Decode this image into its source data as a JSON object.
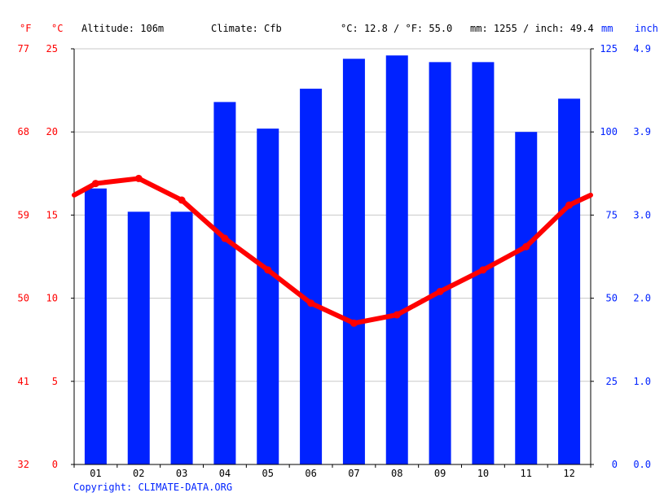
{
  "header": {
    "altitude": "Altitude: 106m",
    "climate": "Climate: Cfb",
    "avg_temp": "°C: 12.8 / °F: 55.0",
    "precip_total": "mm: 1255 / inch: 49.4"
  },
  "units": {
    "fahrenheit": "°F",
    "celsius": "°C",
    "mm": "mm",
    "inch": "inch"
  },
  "footer": {
    "copyright": "Copyright: CLIMATE-DATA.ORG"
  },
  "colors": {
    "temperature": "#ff0000",
    "precipitation": "#0022ff",
    "grid": "#c8c8c8"
  },
  "chart_data": {
    "type": "bar+line",
    "categories": [
      "01",
      "02",
      "03",
      "04",
      "05",
      "06",
      "07",
      "08",
      "09",
      "10",
      "11",
      "12"
    ],
    "precipitation_mm": [
      83,
      76,
      76,
      109,
      101,
      113,
      122,
      123,
      121,
      121,
      100,
      110
    ],
    "temperature_c": [
      16.9,
      17.2,
      15.9,
      13.6,
      11.7,
      9.7,
      8.5,
      9.0,
      10.4,
      11.7,
      13.1,
      15.6
    ],
    "temperature_edge_c": [
      16.2,
      16.2
    ],
    "left_axis_c": {
      "range": [
        0,
        25
      ],
      "ticks": [
        "0",
        "5",
        "10",
        "15",
        "20",
        "25"
      ]
    },
    "left_axis_f": {
      "ticks": [
        "32",
        "41",
        "50",
        "59",
        "68",
        "77"
      ]
    },
    "right_axis_mm": {
      "range": [
        0,
        125
      ],
      "ticks": [
        "0",
        "25",
        "50",
        "75",
        "100",
        "125"
      ]
    },
    "right_axis_inch": {
      "ticks": [
        "0.0",
        "1.0",
        "2.0",
        "3.0",
        "3.9",
        "4.9"
      ]
    },
    "grid": true
  }
}
